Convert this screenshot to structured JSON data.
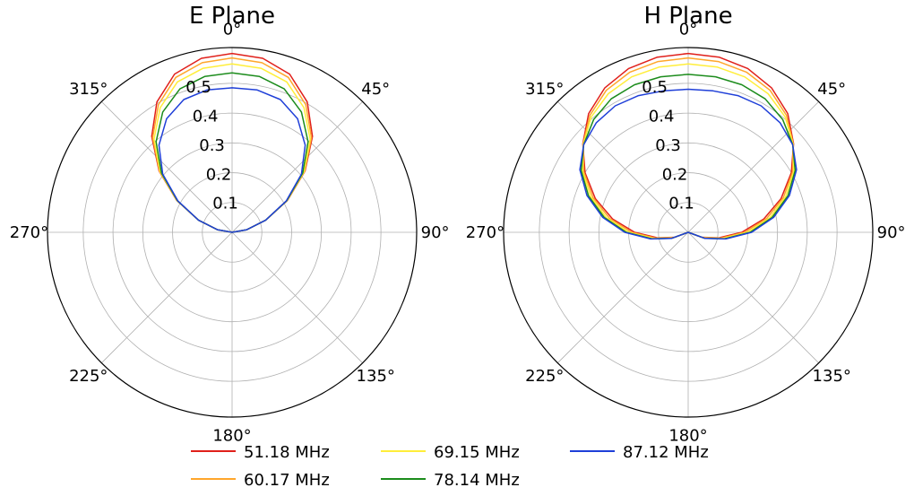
{
  "chart_data": [
    {
      "type": "polar-line",
      "title": "E Plane",
      "angle_ticks": [
        "0°",
        "45°",
        "90°",
        "135°",
        "180°",
        "225°",
        "270°",
        "315°"
      ],
      "radial_ticks": [
        "0.1",
        "0.2",
        "0.3",
        "0.4",
        "0.5"
      ],
      "radial_tick_values": [
        0.1,
        0.2,
        0.3,
        0.4,
        0.5
      ],
      "rlim": [
        0,
        0.62
      ],
      "grid": true,
      "theta_zero": "top",
      "theta_direction": "clockwise",
      "series": [
        {
          "name": "51.18 MHz",
          "color": "#e0201b",
          "theta": [
            0,
            10,
            20,
            30,
            40,
            50,
            60,
            70,
            80,
            90,
            270,
            280,
            290,
            300,
            310,
            320,
            330,
            340,
            350,
            360
          ],
          "r": [
            0.6,
            0.593,
            0.565,
            0.505,
            0.42,
            0.32,
            0.215,
            0.12,
            0.05,
            0.0,
            0.0,
            0.05,
            0.12,
            0.215,
            0.32,
            0.42,
            0.505,
            0.565,
            0.593,
            0.6
          ]
        },
        {
          "name": "60.17 MHz",
          "color": "#ffa62b",
          "theta": [
            0,
            10,
            20,
            30,
            40,
            50,
            60,
            70,
            80,
            90,
            270,
            280,
            290,
            300,
            310,
            320,
            330,
            340,
            350,
            360
          ],
          "r": [
            0.585,
            0.578,
            0.553,
            0.495,
            0.415,
            0.318,
            0.214,
            0.12,
            0.05,
            0.0,
            0.0,
            0.05,
            0.12,
            0.214,
            0.318,
            0.415,
            0.495,
            0.553,
            0.578,
            0.585
          ]
        },
        {
          "name": "69.15 MHz",
          "color": "#ffee3a",
          "theta": [
            0,
            10,
            20,
            30,
            40,
            50,
            60,
            70,
            80,
            90,
            270,
            280,
            290,
            300,
            310,
            320,
            330,
            340,
            350,
            360
          ],
          "r": [
            0.565,
            0.559,
            0.537,
            0.483,
            0.408,
            0.315,
            0.213,
            0.12,
            0.05,
            0.0,
            0.0,
            0.05,
            0.12,
            0.213,
            0.315,
            0.408,
            0.483,
            0.537,
            0.559,
            0.565
          ]
        },
        {
          "name": "78.14 MHz",
          "color": "#1c8c1c",
          "theta": [
            0,
            10,
            20,
            30,
            40,
            50,
            60,
            70,
            80,
            90,
            270,
            280,
            290,
            300,
            310,
            320,
            330,
            340,
            350,
            360
          ],
          "r": [
            0.535,
            0.531,
            0.512,
            0.466,
            0.397,
            0.31,
            0.212,
            0.12,
            0.05,
            0.0,
            0.0,
            0.05,
            0.12,
            0.212,
            0.31,
            0.397,
            0.466,
            0.512,
            0.531,
            0.535
          ]
        },
        {
          "name": "87.12 MHz",
          "color": "#1f3fd8",
          "theta": [
            0,
            10,
            20,
            30,
            40,
            50,
            60,
            70,
            80,
            90,
            270,
            280,
            290,
            300,
            310,
            320,
            330,
            340,
            350,
            360
          ],
          "r": [
            0.485,
            0.485,
            0.474,
            0.44,
            0.382,
            0.304,
            0.21,
            0.12,
            0.05,
            0.0,
            0.0,
            0.05,
            0.12,
            0.21,
            0.304,
            0.382,
            0.44,
            0.474,
            0.485,
            0.485
          ]
        }
      ]
    },
    {
      "type": "polar-line",
      "title": "H Plane",
      "angle_ticks": [
        "0°",
        "45°",
        "90°",
        "135°",
        "180°",
        "225°",
        "270°",
        "315°"
      ],
      "radial_ticks": [
        "0.1",
        "0.2",
        "0.3",
        "0.4",
        "0.5"
      ],
      "radial_tick_values": [
        0.1,
        0.2,
        0.3,
        0.4,
        0.5
      ],
      "rlim": [
        0,
        0.62
      ],
      "grid": true,
      "theta_zero": "top",
      "theta_direction": "clockwise",
      "series": [
        {
          "name": "51.18 MHz",
          "color": "#e0201b",
          "theta": [
            0,
            10,
            20,
            30,
            40,
            50,
            60,
            70,
            80,
            90,
            100,
            110,
            120,
            240,
            250,
            260,
            270,
            280,
            290,
            300,
            310,
            320,
            330,
            340,
            350,
            360
          ],
          "r": [
            0.6,
            0.597,
            0.585,
            0.56,
            0.52,
            0.462,
            0.4,
            0.332,
            0.258,
            0.18,
            0.105,
            0.048,
            0.0,
            0.0,
            0.048,
            0.105,
            0.18,
            0.258,
            0.332,
            0.4,
            0.462,
            0.52,
            0.56,
            0.585,
            0.597,
            0.6
          ]
        },
        {
          "name": "60.17 MHz",
          "color": "#ffa62b",
          "theta": [
            0,
            10,
            20,
            30,
            40,
            50,
            60,
            70,
            80,
            90,
            100,
            110,
            120,
            240,
            250,
            260,
            270,
            280,
            290,
            300,
            310,
            320,
            330,
            340,
            350,
            360
          ],
          "r": [
            0.585,
            0.582,
            0.572,
            0.55,
            0.513,
            0.461,
            0.405,
            0.34,
            0.268,
            0.19,
            0.112,
            0.052,
            0.0,
            0.0,
            0.052,
            0.112,
            0.19,
            0.268,
            0.34,
            0.405,
            0.461,
            0.513,
            0.55,
            0.572,
            0.582,
            0.585
          ]
        },
        {
          "name": "69.15 MHz",
          "color": "#ffee3a",
          "theta": [
            0,
            10,
            20,
            30,
            40,
            50,
            60,
            70,
            80,
            90,
            100,
            110,
            120,
            240,
            250,
            260,
            270,
            280,
            290,
            300,
            310,
            320,
            330,
            340,
            350,
            360
          ],
          "r": [
            0.565,
            0.563,
            0.555,
            0.537,
            0.506,
            0.46,
            0.41,
            0.348,
            0.278,
            0.2,
            0.118,
            0.055,
            0.0,
            0.0,
            0.055,
            0.118,
            0.2,
            0.278,
            0.348,
            0.41,
            0.46,
            0.506,
            0.537,
            0.555,
            0.563,
            0.565
          ]
        },
        {
          "name": "78.14 MHz",
          "color": "#1c8c1c",
          "theta": [
            0,
            10,
            20,
            30,
            40,
            50,
            60,
            70,
            80,
            90,
            100,
            110,
            120,
            240,
            250,
            260,
            270,
            280,
            290,
            300,
            310,
            320,
            330,
            340,
            350,
            360
          ],
          "r": [
            0.53,
            0.53,
            0.527,
            0.517,
            0.494,
            0.458,
            0.415,
            0.356,
            0.286,
            0.208,
            0.124,
            0.058,
            0.0,
            0.0,
            0.058,
            0.124,
            0.208,
            0.286,
            0.356,
            0.415,
            0.458,
            0.494,
            0.517,
            0.527,
            0.53,
            0.53
          ]
        },
        {
          "name": "87.12 MHz",
          "color": "#1f3fd8",
          "theta": [
            0,
            10,
            20,
            30,
            40,
            50,
            60,
            70,
            80,
            90,
            100,
            110,
            120,
            240,
            250,
            260,
            270,
            280,
            290,
            300,
            310,
            320,
            330,
            340,
            350,
            360
          ],
          "r": [
            0.48,
            0.482,
            0.488,
            0.49,
            0.48,
            0.458,
            0.42,
            0.362,
            0.292,
            0.213,
            0.128,
            0.06,
            0.0,
            0.0,
            0.06,
            0.128,
            0.213,
            0.292,
            0.362,
            0.42,
            0.458,
            0.48,
            0.49,
            0.488,
            0.482,
            0.48
          ]
        }
      ]
    }
  ],
  "legend": {
    "placement": "bottom-center",
    "items": [
      {
        "label": "51.18 MHz",
        "color": "#e0201b"
      },
      {
        "label": "60.17 MHz",
        "color": "#ffa62b"
      },
      {
        "label": "69.15 MHz",
        "color": "#ffee3a"
      },
      {
        "label": "78.14 MHz",
        "color": "#1c8c1c"
      },
      {
        "label": "87.12 MHz",
        "color": "#1f3fd8"
      }
    ]
  }
}
